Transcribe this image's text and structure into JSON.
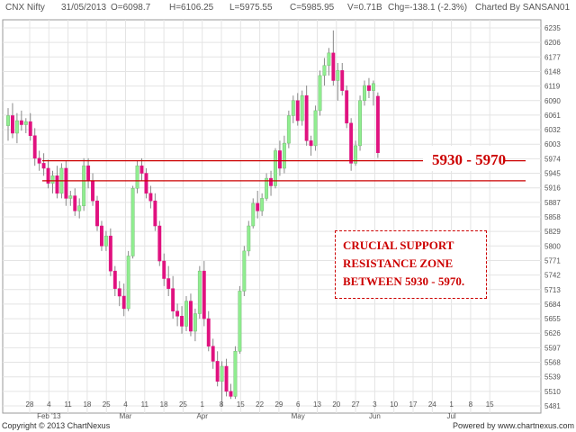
{
  "header": {
    "symbol": "CNX Nifty",
    "date": "31/05/2013",
    "open": "O=6098.7",
    "high": "H=6106.25",
    "low": "L=5975.55",
    "close": "C=5985.95",
    "volume": "V=0.71B",
    "change": "Chg=-138.1 (-2.3%)",
    "charted_by": "Charted By SANSAN01"
  },
  "footer": {
    "copyright": "Copyright © 2013 ChartNexus",
    "powered_by": "Powered by www.chartnexus.com"
  },
  "colors": {
    "up": "#90ee90",
    "down": "#e0117f",
    "line": "#cc0000",
    "grid": "#e4e4e4"
  },
  "chart_data": {
    "type": "candlestick",
    "title": "",
    "xlabel": "",
    "ylabel": "",
    "ylim": [
      5466,
      6262
    ],
    "grid": true,
    "y_ticks": [
      "6235",
      "6206",
      "6177",
      "6148",
      "6119",
      "6090",
      "6061",
      "6032",
      "6003",
      "5974",
      "5945",
      "5916",
      "5887",
      "5858",
      "5829",
      "5800",
      "5771",
      "5742",
      "5713",
      "5684",
      "5655",
      "5626",
      "5597",
      "5568",
      "5539",
      "5510",
      "5481"
    ],
    "x_day_ticks": [
      "28",
      "4",
      "11",
      "18",
      "25",
      "4",
      "11",
      "18",
      "25",
      "1",
      "8",
      "15",
      "22",
      "29",
      "6",
      "13",
      "20",
      "27",
      "3",
      "10",
      "17",
      "24",
      "1",
      "8",
      "15"
    ],
    "x_month_ticks": [
      "Feb '13",
      "Mar",
      "Apr",
      "May",
      "Jun",
      "Jul"
    ],
    "candles": [
      {
        "o": 6040,
        "h": 6075,
        "l": 6010,
        "c": 6060
      },
      {
        "o": 6060,
        "h": 6085,
        "l": 6015,
        "c": 6025
      },
      {
        "o": 6025,
        "h": 6065,
        "l": 6005,
        "c": 6050
      },
      {
        "o": 6050,
        "h": 6070,
        "l": 6030,
        "c": 6042
      },
      {
        "o": 6042,
        "h": 6055,
        "l": 6025,
        "c": 6048
      },
      {
        "o": 6048,
        "h": 6065,
        "l": 6010,
        "c": 6020
      },
      {
        "o": 6020,
        "h": 6035,
        "l": 5960,
        "c": 5975
      },
      {
        "o": 5975,
        "h": 5990,
        "l": 5950,
        "c": 5965
      },
      {
        "o": 5965,
        "h": 5985,
        "l": 5940,
        "c": 5955
      },
      {
        "o": 5955,
        "h": 5972,
        "l": 5915,
        "c": 5925
      },
      {
        "o": 5925,
        "h": 5950,
        "l": 5905,
        "c": 5940
      },
      {
        "o": 5940,
        "h": 5960,
        "l": 5895,
        "c": 5905
      },
      {
        "o": 5905,
        "h": 5965,
        "l": 5895,
        "c": 5955
      },
      {
        "o": 5955,
        "h": 5970,
        "l": 5880,
        "c": 5895
      },
      {
        "o": 5895,
        "h": 5910,
        "l": 5880,
        "c": 5900
      },
      {
        "o": 5900,
        "h": 5915,
        "l": 5860,
        "c": 5870
      },
      {
        "o": 5870,
        "h": 5895,
        "l": 5855,
        "c": 5880
      },
      {
        "o": 5880,
        "h": 5975,
        "l": 5870,
        "c": 5960
      },
      {
        "o": 5960,
        "h": 5975,
        "l": 5915,
        "c": 5930
      },
      {
        "o": 5930,
        "h": 5945,
        "l": 5880,
        "c": 5890
      },
      {
        "o": 5890,
        "h": 5900,
        "l": 5830,
        "c": 5840
      },
      {
        "o": 5840,
        "h": 5850,
        "l": 5790,
        "c": 5800
      },
      {
        "o": 5800,
        "h": 5830,
        "l": 5790,
        "c": 5820
      },
      {
        "o": 5820,
        "h": 5835,
        "l": 5740,
        "c": 5750
      },
      {
        "o": 5750,
        "h": 5760,
        "l": 5700,
        "c": 5715
      },
      {
        "o": 5715,
        "h": 5730,
        "l": 5680,
        "c": 5700
      },
      {
        "o": 5700,
        "h": 5725,
        "l": 5660,
        "c": 5675
      },
      {
        "o": 5675,
        "h": 5790,
        "l": 5670,
        "c": 5780
      },
      {
        "o": 5780,
        "h": 5920,
        "l": 5775,
        "c": 5915
      },
      {
        "o": 5915,
        "h": 5970,
        "l": 5905,
        "c": 5960
      },
      {
        "o": 5960,
        "h": 5975,
        "l": 5930,
        "c": 5945
      },
      {
        "o": 5945,
        "h": 5955,
        "l": 5895,
        "c": 5905
      },
      {
        "o": 5905,
        "h": 5920,
        "l": 5875,
        "c": 5890
      },
      {
        "o": 5890,
        "h": 5905,
        "l": 5830,
        "c": 5840
      },
      {
        "o": 5840,
        "h": 5850,
        "l": 5760,
        "c": 5770
      },
      {
        "o": 5770,
        "h": 5785,
        "l": 5720,
        "c": 5735
      },
      {
        "o": 5735,
        "h": 5760,
        "l": 5700,
        "c": 5715
      },
      {
        "o": 5715,
        "h": 5740,
        "l": 5655,
        "c": 5670
      },
      {
        "o": 5670,
        "h": 5685,
        "l": 5640,
        "c": 5660
      },
      {
        "o": 5660,
        "h": 5680,
        "l": 5625,
        "c": 5640
      },
      {
        "o": 5640,
        "h": 5700,
        "l": 5630,
        "c": 5690
      },
      {
        "o": 5690,
        "h": 5705,
        "l": 5620,
        "c": 5630
      },
      {
        "o": 5630,
        "h": 5675,
        "l": 5610,
        "c": 5665
      },
      {
        "o": 5665,
        "h": 5760,
        "l": 5655,
        "c": 5750
      },
      {
        "o": 5750,
        "h": 5770,
        "l": 5640,
        "c": 5655
      },
      {
        "o": 5655,
        "h": 5670,
        "l": 5590,
        "c": 5600
      },
      {
        "o": 5600,
        "h": 5615,
        "l": 5555,
        "c": 5570
      },
      {
        "o": 5570,
        "h": 5590,
        "l": 5520,
        "c": 5530
      },
      {
        "o": 5530,
        "h": 5570,
        "l": 5480,
        "c": 5560
      },
      {
        "o": 5560,
        "h": 5575,
        "l": 5500,
        "c": 5510
      },
      {
        "o": 5510,
        "h": 5525,
        "l": 5495,
        "c": 5500
      },
      {
        "o": 5500,
        "h": 5600,
        "l": 5495,
        "c": 5590
      },
      {
        "o": 5590,
        "h": 5720,
        "l": 5585,
        "c": 5710
      },
      {
        "o": 5710,
        "h": 5800,
        "l": 5700,
        "c": 5790
      },
      {
        "o": 5790,
        "h": 5850,
        "l": 5780,
        "c": 5840
      },
      {
        "o": 5840,
        "h": 5895,
        "l": 5835,
        "c": 5885
      },
      {
        "o": 5885,
        "h": 5910,
        "l": 5855,
        "c": 5870
      },
      {
        "o": 5870,
        "h": 5905,
        "l": 5860,
        "c": 5895
      },
      {
        "o": 5895,
        "h": 5945,
        "l": 5890,
        "c": 5935
      },
      {
        "o": 5935,
        "h": 5950,
        "l": 5900,
        "c": 5920
      },
      {
        "o": 5920,
        "h": 5995,
        "l": 5915,
        "c": 5990
      },
      {
        "o": 5990,
        "h": 6010,
        "l": 5940,
        "c": 5955
      },
      {
        "o": 5955,
        "h": 6020,
        "l": 5945,
        "c": 6005
      },
      {
        "o": 6005,
        "h": 6070,
        "l": 5995,
        "c": 6060
      },
      {
        "o": 6060,
        "h": 6100,
        "l": 6045,
        "c": 6090
      },
      {
        "o": 6090,
        "h": 6105,
        "l": 6040,
        "c": 6050
      },
      {
        "o": 6050,
        "h": 6110,
        "l": 6040,
        "c": 6100
      },
      {
        "o": 6100,
        "h": 6120,
        "l": 6000,
        "c": 6010
      },
      {
        "o": 6010,
        "h": 6020,
        "l": 5980,
        "c": 6000
      },
      {
        "o": 6000,
        "h": 6080,
        "l": 5990,
        "c": 6070
      },
      {
        "o": 6070,
        "h": 6150,
        "l": 6060,
        "c": 6140
      },
      {
        "o": 6140,
        "h": 6175,
        "l": 6120,
        "c": 6160
      },
      {
        "o": 6160,
        "h": 6195,
        "l": 6140,
        "c": 6185
      },
      {
        "o": 6185,
        "h": 6230,
        "l": 6120,
        "c": 6130
      },
      {
        "o": 6130,
        "h": 6165,
        "l": 6090,
        "c": 6150
      },
      {
        "o": 6150,
        "h": 6165,
        "l": 6100,
        "c": 6110
      },
      {
        "o": 6110,
        "h": 6120,
        "l": 6035,
        "c": 6045
      },
      {
        "o": 6045,
        "h": 6055,
        "l": 5950,
        "c": 5965
      },
      {
        "o": 5965,
        "h": 6010,
        "l": 5960,
        "c": 6000
      },
      {
        "o": 6000,
        "h": 6100,
        "l": 5990,
        "c": 6090
      },
      {
        "o": 6090,
        "h": 6130,
        "l": 6080,
        "c": 6120
      },
      {
        "o": 6120,
        "h": 6135,
        "l": 6095,
        "c": 6110
      },
      {
        "o": 6110,
        "h": 6130,
        "l": 6080,
        "c": 6124
      },
      {
        "o": 6098.7,
        "h": 6106.25,
        "l": 5975.55,
        "c": 5985.95
      }
    ],
    "annotations": {
      "lines": [
        5930,
        5970
      ],
      "zone_label": "5930 - 5970",
      "box_lines": [
        "CRUCIAL SUPPORT",
        "RESISTANCE ZONE",
        "BETWEEN 5930 - 5970."
      ]
    }
  }
}
